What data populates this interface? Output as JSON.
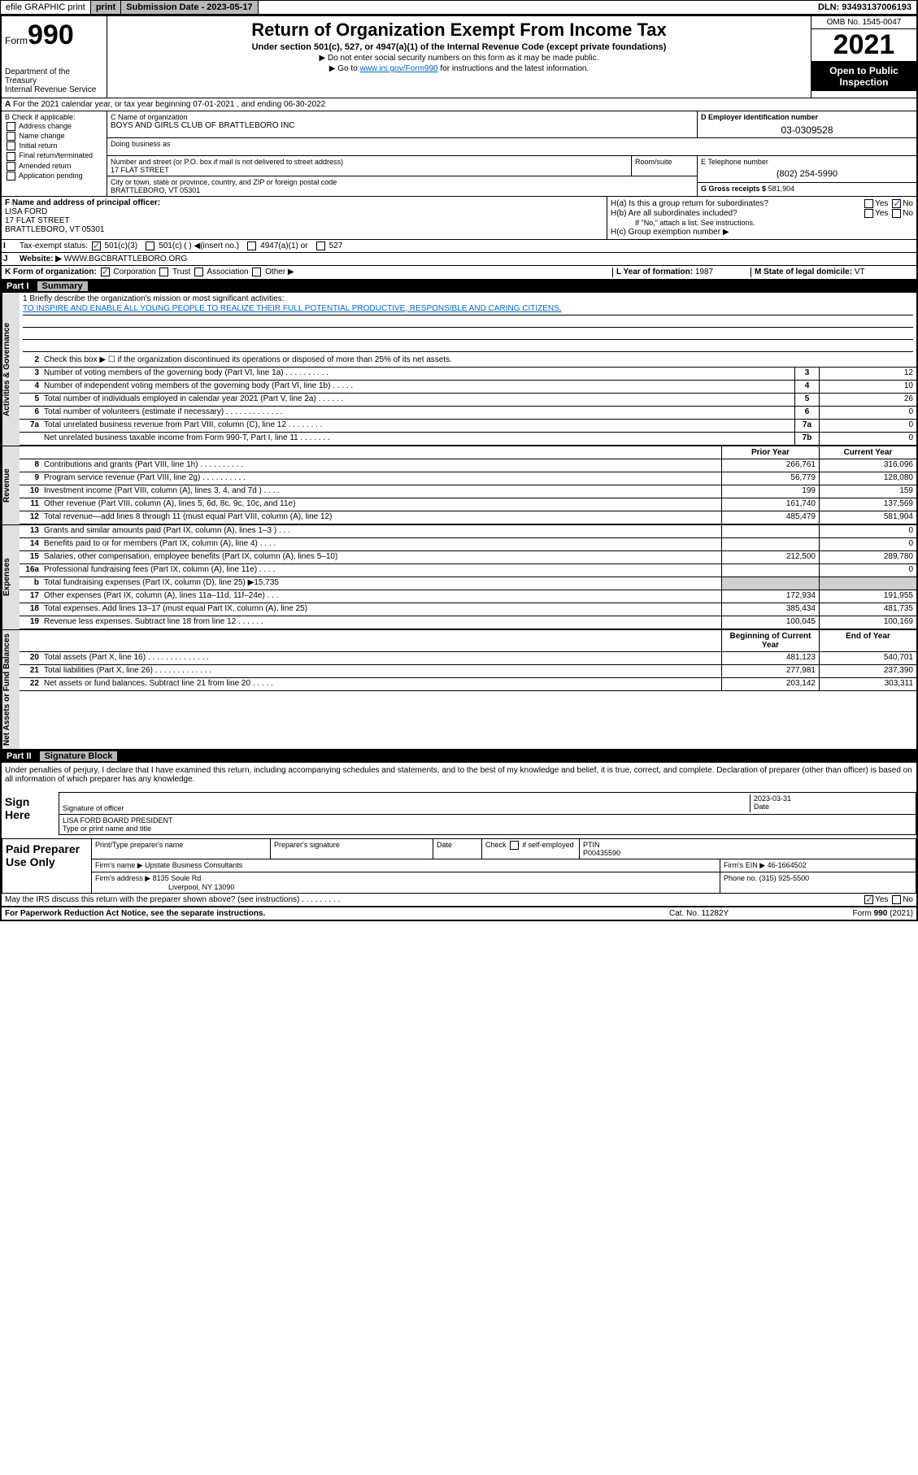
{
  "topbar": {
    "efile": "efile GRAPHIC print",
    "submission_label": "Submission Date - 2023-05-17",
    "dln": "DLN: 93493137006193"
  },
  "header": {
    "form_prefix": "Form",
    "form_num": "990",
    "dept": "Department of the Treasury",
    "irs": "Internal Revenue Service",
    "title": "Return of Organization Exempt From Income Tax",
    "subtitle": "Under section 501(c), 527, or 4947(a)(1) of the Internal Revenue Code (except private foundations)",
    "note1": "▶ Do not enter social security numbers on this form as it may be made public.",
    "note2_pre": "▶ Go to ",
    "note2_link": "www.irs.gov/Form990",
    "note2_post": " for instructions and the latest information.",
    "omb": "OMB No. 1545-0047",
    "year": "2021",
    "open": "Open to Public Inspection"
  },
  "row_a": {
    "text": "For the 2021 calendar year, or tax year beginning 07-01-2021    , and ending 06-30-2022",
    "label": "A"
  },
  "col_b": {
    "label": "B Check if applicable:",
    "items": [
      "Address change",
      "Name change",
      "Initial return",
      "Final return/terminated",
      "Amended return",
      "Application pending"
    ]
  },
  "section_c": {
    "name_label": "C Name of organization",
    "name": "BOYS AND GIRLS CLUB OF BRATTLEBORO INC",
    "dba_label": "Doing business as",
    "street_label": "Number and street (or P.O. box if mail is not delivered to street address)",
    "street": "17 FLAT STREET",
    "room_label": "Room/suite",
    "city_label": "City or town, state or province, country, and ZIP or foreign postal code",
    "city": "BRATTLEBORO, VT  05301"
  },
  "section_d": {
    "label": "D Employer identification number",
    "value": "03-0309528"
  },
  "section_e": {
    "label": "E Telephone number",
    "value": "(802) 254-5990"
  },
  "section_g": {
    "label": "G Gross receipts $",
    "value": "581,904"
  },
  "section_f": {
    "label": "F  Name and address of principal officer:",
    "name": "LISA FORD",
    "street": "17 FLAT STREET",
    "city": "BRATTLEBORO, VT  05301"
  },
  "section_h": {
    "ha": "H(a)  Is this a group return for subordinates?",
    "hb": "H(b)  Are all subordinates included?",
    "hb_note": "If \"No,\" attach a list. See instructions.",
    "hc": "H(c)  Group exemption number ▶"
  },
  "row_i": {
    "label": "I",
    "text": "Tax-exempt status:",
    "opts": [
      "501(c)(3)",
      "501(c) (  ) ◀(insert no.)",
      "4947(a)(1) or",
      "527"
    ]
  },
  "row_j": {
    "label": "J",
    "text": "Website: ▶",
    "value": "WWW.BGCBRATTLEBORO.ORG"
  },
  "row_k": {
    "text": "K Form of organization:",
    "opts": [
      "Corporation",
      "Trust",
      "Association",
      "Other ▶"
    ],
    "l_label": "L Year of formation:",
    "l_val": "1987",
    "m_label": "M State of legal domicile:",
    "m_val": "VT"
  },
  "part1": {
    "num": "Part I",
    "title": "Summary"
  },
  "mission": {
    "label": "1  Briefly describe the organization's mission or most significant activities:",
    "text": "TO INSPIRE AND ENABLE ALL YOUNG PEOPLE TO REALIZE THEIR FULL POTENTIAL PRODUCTIVE, RESPONSIBLE AND CARING CITIZENS."
  },
  "gov_lines": [
    {
      "n": "2",
      "d": "Check this box ▶ ☐  if the organization discontinued its operations or disposed of more than 25% of its net assets."
    },
    {
      "n": "3",
      "d": "Number of voting members of the governing body (Part VI, line 1a)  .   .   .   .   .   .   .   .   .   .",
      "b": "3",
      "v": "12"
    },
    {
      "n": "4",
      "d": "Number of independent voting members of the governing body (Part VI, line 1b)  .   .   .   .   .",
      "b": "4",
      "v": "10"
    },
    {
      "n": "5",
      "d": "Total number of individuals employed in calendar year 2021 (Part V, line 2a)  .   .   .   .   .   .",
      "b": "5",
      "v": "26"
    },
    {
      "n": "6",
      "d": "Total number of volunteers (estimate if necessary)  .   .   .   .   .   .   .   .   .   .   .   .   .",
      "b": "6",
      "v": "0"
    },
    {
      "n": "7a",
      "d": "Total unrelated business revenue from Part VIII, column (C), line 12  .   .   .   .   .   .   .   .",
      "b": "7a",
      "v": "0"
    },
    {
      "n": "",
      "d": "Net unrelated business taxable income from Form 990-T, Part I, line 11  .   .   .   .   .   .   .",
      "b": "7b",
      "v": "0"
    }
  ],
  "colheaders": {
    "prior": "Prior Year",
    "current": "Current Year",
    "boy": "Beginning of Current Year",
    "eoy": "End of Year"
  },
  "rev_lines": [
    {
      "n": "8",
      "d": "Contributions and grants (Part VIII, line 1h)  .   .   .   .   .   .   .   .   .   .",
      "p": "266,761",
      "c": "316,096"
    },
    {
      "n": "9",
      "d": "Program service revenue (Part VIII, line 2g)  .   .   .   .   .   .   .   .   .   .",
      "p": "56,779",
      "c": "128,080"
    },
    {
      "n": "10",
      "d": "Investment income (Part VIII, column (A), lines 3, 4, and 7d )  .   .   .   .",
      "p": "199",
      "c": "159"
    },
    {
      "n": "11",
      "d": "Other revenue (Part VIII, column (A), lines 5, 6d, 8c, 9c, 10c, and 11e)",
      "p": "161,740",
      "c": "137,569"
    },
    {
      "n": "12",
      "d": "Total revenue—add lines 8 through 11 (must equal Part VIII, column (A), line 12)",
      "p": "485,479",
      "c": "581,904"
    }
  ],
  "exp_lines": [
    {
      "n": "13",
      "d": "Grants and similar amounts paid (Part IX, column (A), lines 1–3 )  .   .   .",
      "p": "",
      "c": "0"
    },
    {
      "n": "14",
      "d": "Benefits paid to or for members (Part IX, column (A), line 4)  .   .   .   .",
      "p": "",
      "c": "0"
    },
    {
      "n": "15",
      "d": "Salaries, other compensation, employee benefits (Part IX, column (A), lines 5–10)",
      "p": "212,500",
      "c": "289,780"
    },
    {
      "n": "16a",
      "d": "Professional fundraising fees (Part IX, column (A), line 11e)  .   .   .   .",
      "p": "",
      "c": "0"
    },
    {
      "n": "b",
      "d": "Total fundraising expenses (Part IX, column (D), line 25) ▶15,735",
      "shade": true
    },
    {
      "n": "17",
      "d": "Other expenses (Part IX, column (A), lines 11a–11d, 11f–24e)  .   .   .",
      "p": "172,934",
      "c": "191,955"
    },
    {
      "n": "18",
      "d": "Total expenses. Add lines 13–17 (must equal Part IX, column (A), line 25)",
      "p": "385,434",
      "c": "481,735"
    },
    {
      "n": "19",
      "d": "Revenue less expenses. Subtract line 18 from line 12  .   .   .   .   .   .",
      "p": "100,045",
      "c": "100,169"
    }
  ],
  "na_lines": [
    {
      "n": "20",
      "d": "Total assets (Part X, line 16)  .   .   .   .   .   .   .   .   .   .   .   .   .   .",
      "p": "481,123",
      "c": "540,701"
    },
    {
      "n": "21",
      "d": "Total liabilities (Part X, line 26)  .   .   .   .   .   .   .   .   .   .   .   .   .",
      "p": "277,981",
      "c": "237,390"
    },
    {
      "n": "22",
      "d": "Net assets or fund balances. Subtract line 21 from line 20  .   .   .   .   .",
      "p": "203,142",
      "c": "303,311"
    }
  ],
  "part2": {
    "num": "Part II",
    "title": "Signature Block"
  },
  "sig": {
    "decl": "Under penalties of perjury, I declare that I have examined this return, including accompanying schedules and statements, and to the best of my knowledge and belief, it is true, correct, and complete. Declaration of preparer (other than officer) is based on all information of which preparer has any knowledge.",
    "sign_here": "Sign Here",
    "sig_officer": "Signature of officer",
    "date": "2023-03-31",
    "name": "LISA FORD  BOARD PRESIDENT",
    "name_label": "Type or print name and title"
  },
  "paid": {
    "label": "Paid Preparer Use Only",
    "h1": "Print/Type preparer's name",
    "h2": "Preparer's signature",
    "h3": "Date",
    "h4_pre": "Check",
    "h4_post": "if self-employed",
    "h5": "PTIN",
    "ptin": "P00435590",
    "firm_label": "Firm's name   ▶",
    "firm": "Upstate Business Consultants",
    "ein_label": "Firm's EIN ▶",
    "ein": "46-1664502",
    "addr_label": "Firm's address ▶",
    "addr1": "8135 Soule Rd",
    "addr2": "Liverpool, NY  13090",
    "phone_label": "Phone no.",
    "phone": "(315) 925-5500"
  },
  "may_discuss": "May the IRS discuss this return with the preparer shown above? (see instructions)   .   .   .   .   .   .   .   .   .",
  "footer": {
    "l": "For Paperwork Reduction Act Notice, see the separate instructions.",
    "m": "Cat. No. 11282Y",
    "r": "Form 990 (2021)"
  },
  "vtabs": {
    "gov": "Activities & Governance",
    "rev": "Revenue",
    "exp": "Expenses",
    "na": "Net Assets or Fund Balances"
  }
}
